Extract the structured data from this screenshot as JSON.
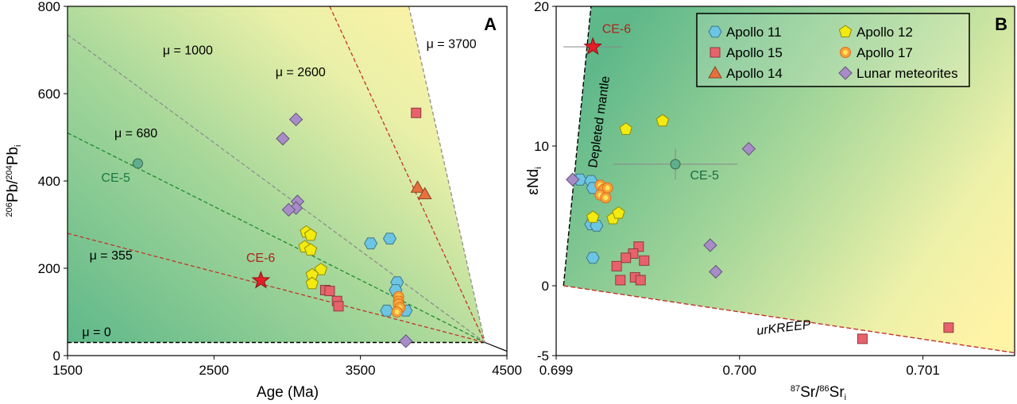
{
  "colors": {
    "green": "#5fb88a",
    "yellow": "#fff3a6",
    "apollo11": "#6bc5e3",
    "apollo15": "#e7626b",
    "apollo14": "#e8703e",
    "apollo12": "#f2ea10",
    "apollo17": "#f4a43a",
    "meteorite": "#a88cc8",
    "ce5": "#5fae8c",
    "star": "#e31f26",
    "mu_gray": "#8d8d8d",
    "mu_red": "#c0352b",
    "mu_green": "#1f8a2e",
    "mu_black": "#000000"
  },
  "chart_data": [
    {
      "type": "scatter",
      "panel_label": "A",
      "xlabel": "Age (Ma)",
      "ylabel_main": "Pb/",
      "ylabel_sup1": "206",
      "ylabel_sup2": "204",
      "ylabel_end": "Pb",
      "ylabel_sub": "i",
      "xlim": [
        1500,
        4500
      ],
      "ylim": [
        0,
        800
      ],
      "xticks": [
        1500,
        2500,
        3500,
        4500
      ],
      "yticks": [
        0,
        200,
        400,
        600,
        800
      ],
      "isochrons": [
        {
          "label": "μ = 0",
          "color": "mu_black",
          "x1": 1500,
          "y1": 30,
          "x2": 4350,
          "y2": 30,
          "label_x": 1600,
          "label_y": 45
        },
        {
          "label": "μ = 355",
          "color": "mu_red",
          "x1": 1500,
          "y1": 280,
          "x2": 4350,
          "y2": 30,
          "label_x": 1650,
          "label_y": 220
        },
        {
          "label": "μ = 680",
          "color": "mu_green",
          "x1": 1500,
          "y1": 510,
          "x2": 4350,
          "y2": 30,
          "label_x": 1820,
          "label_y": 500
        },
        {
          "label": "μ = 1000",
          "color": "mu_gray",
          "x1": 1500,
          "y1": 735,
          "x2": 4350,
          "y2": 30,
          "label_x": 2150,
          "label_y": 690
        },
        {
          "label": "μ = 2600",
          "color": "mu_red",
          "x1": 3290,
          "y1": 800,
          "x2": 4350,
          "y2": 30,
          "label_x": 2920,
          "label_y": 640
        },
        {
          "label": "μ = 3700",
          "color": "mu_gray",
          "x1": 3830,
          "y1": 800,
          "x2": 4350,
          "y2": 30,
          "label_x": 3950,
          "label_y": 705
        }
      ],
      "series": [
        {
          "name": "CE-5",
          "marker": "circle",
          "color": "ce5",
          "points": [
            [
              1980,
              440
            ]
          ],
          "label": "CE-5",
          "label_x": 1730,
          "label_y": 398
        },
        {
          "name": "CE-6",
          "marker": "star",
          "color": "star",
          "points": [
            [
              2820,
              172
            ]
          ],
          "label": "CE-6",
          "label_x": 2720,
          "label_y": 215
        },
        {
          "name": "Apollo 11",
          "marker": "hexagon",
          "color": "apollo11",
          "points": [
            [
              3570,
              257
            ],
            [
              3700,
              268
            ],
            [
              3750,
              168
            ],
            [
              3740,
              150
            ],
            [
              3680,
              103
            ],
            [
              3810,
              103
            ]
          ]
        },
        {
          "name": "Apollo 15",
          "marker": "square",
          "color": "apollo15",
          "points": [
            [
              3880,
              556
            ],
            [
              3260,
              150
            ],
            [
              3290,
              148
            ],
            [
              3340,
              125
            ],
            [
              3350,
              113
            ]
          ]
        },
        {
          "name": "Apollo 14",
          "marker": "triangle",
          "color": "apollo14",
          "points": [
            [
              3890,
              385
            ],
            [
              3940,
              370
            ]
          ]
        },
        {
          "name": "Apollo 12",
          "marker": "pentagon",
          "color": "apollo12",
          "points": [
            [
              3130,
              283
            ],
            [
              3160,
              276
            ],
            [
              3120,
              249
            ],
            [
              3160,
              242
            ],
            [
              3230,
              197
            ],
            [
              3170,
              185
            ],
            [
              3170,
              165
            ]
          ]
        },
        {
          "name": "Apollo 17",
          "marker": "dotted",
          "color": "apollo17",
          "points": [
            [
              3760,
              135
            ],
            [
              3760,
              125
            ],
            [
              3760,
              118
            ],
            [
              3770,
              110
            ],
            [
              3750,
              100
            ]
          ]
        },
        {
          "name": "Lunar meteorites",
          "marker": "diamond",
          "color": "meteorite",
          "points": [
            [
              3060,
              541
            ],
            [
              2970,
              497
            ],
            [
              3070,
              353
            ],
            [
              3060,
              338
            ],
            [
              3010,
              334
            ],
            [
              3810,
              33
            ]
          ]
        }
      ]
    },
    {
      "type": "scatter",
      "panel_label": "B",
      "xlabel_pre": "Sr/",
      "xlabel_sup1": "87",
      "xlabel_sup2": "86",
      "xlabel_end": "Sr",
      "xlabel_sub": "i",
      "ylabel_main": "εNd",
      "ylabel_sub": "i",
      "xlim": [
        0.699,
        0.7015
      ],
      "ylim": [
        -5,
        20
      ],
      "xticks": [
        0.699,
        0.7,
        0.701
      ],
      "xtick_labels": [
        "0.699",
        "0.700",
        "0.701"
      ],
      "yticks": [
        -5,
        0,
        10,
        20
      ],
      "ytick_labels": [
        "-5",
        "0",
        "10",
        "20"
      ],
      "region_poly": [
        [
          0.69904,
          0
        ],
        [
          0.69919,
          20
        ],
        [
          0.7015,
          20
        ],
        [
          0.7015,
          -4.8
        ]
      ],
      "boundaries": [
        {
          "label": "Depleted mantle",
          "x1": 0.69904,
          "y1": 0,
          "x2": 0.69919,
          "y2": 20,
          "color": "mu_black"
        },
        {
          "label": "urKREEP",
          "x1": 0.69904,
          "y1": 0,
          "x2": 0.7015,
          "y2": -4.8,
          "color": "mu_red"
        }
      ],
      "series": [
        {
          "name": "Apollo 11",
          "marker": "hexagon",
          "color": "apollo11",
          "points": [
            [
              0.69913,
              7.6
            ],
            [
              0.69919,
              7.5
            ],
            [
              0.6992,
              7.0
            ],
            [
              0.69919,
              4.4
            ],
            [
              0.69922,
              4.3
            ],
            [
              0.6992,
              2.0
            ]
          ]
        },
        {
          "name": "Apollo 15",
          "marker": "square",
          "color": "apollo15",
          "points": [
            [
              0.69945,
              2.8
            ],
            [
              0.69942,
              2.3
            ],
            [
              0.69938,
              2.0
            ],
            [
              0.69948,
              1.8
            ],
            [
              0.69933,
              1.4
            ],
            [
              0.69935,
              0.4
            ],
            [
              0.69943,
              0.6
            ],
            [
              0.69946,
              0.4
            ],
            [
              0.70067,
              -3.8
            ],
            [
              0.70114,
              -3.0
            ]
          ]
        },
        {
          "name": "Apollo 14",
          "marker": "triangle",
          "color": "apollo14",
          "points": []
        },
        {
          "name": "Apollo 12",
          "marker": "pentagon",
          "color": "apollo12",
          "points": [
            [
              0.69938,
              11.2
            ],
            [
              0.69958,
              11.8
            ],
            [
              0.69931,
              4.8
            ],
            [
              0.69934,
              5.2
            ],
            [
              0.6992,
              4.9
            ]
          ]
        },
        {
          "name": "Apollo 17",
          "marker": "dotted",
          "color": "apollo17",
          "points": [
            [
              0.69924,
              7.2
            ],
            [
              0.69926,
              6.9
            ],
            [
              0.69924,
              6.5
            ],
            [
              0.69927,
              6.3
            ],
            [
              0.69928,
              7.0
            ]
          ]
        },
        {
          "name": "Lunar meteorites",
          "marker": "diamond",
          "color": "meteorite",
          "points": [
            [
              0.69909,
              7.6
            ],
            [
              0.70005,
              9.8
            ],
            [
              0.69984,
              2.9
            ],
            [
              0.69987,
              1.0
            ]
          ]
        },
        {
          "name": "CE-5",
          "marker": "circle",
          "color": "ce5",
          "points": [
            [
              0.69965,
              8.7
            ]
          ],
          "label": "CE-5",
          "label_x": 0.69973,
          "label_y": 7.6,
          "xerr": 0.00034,
          "yerr": 1.1
        },
        {
          "name": "CE-6",
          "marker": "star",
          "color": "star",
          "points": [
            [
              0.6992,
              17.1
            ]
          ],
          "label": "CE-6",
          "label_x": 0.69925,
          "label_y": 18.1,
          "xerr": 0.00016,
          "yerr": 0
        }
      ],
      "legend": {
        "placement": "top-right",
        "entries": [
          {
            "name": "Apollo 11",
            "marker": "hexagon",
            "color": "apollo11"
          },
          {
            "name": "Apollo 12",
            "marker": "pentagon",
            "color": "apollo12"
          },
          {
            "name": "Apollo 15",
            "marker": "square",
            "color": "apollo15"
          },
          {
            "name": "Apollo 17",
            "marker": "dotted",
            "color": "apollo17"
          },
          {
            "name": "Apollo 14",
            "marker": "triangle",
            "color": "apollo14"
          },
          {
            "name": "Lunar meteorites",
            "marker": "diamond",
            "color": "meteorite"
          }
        ]
      }
    }
  ]
}
